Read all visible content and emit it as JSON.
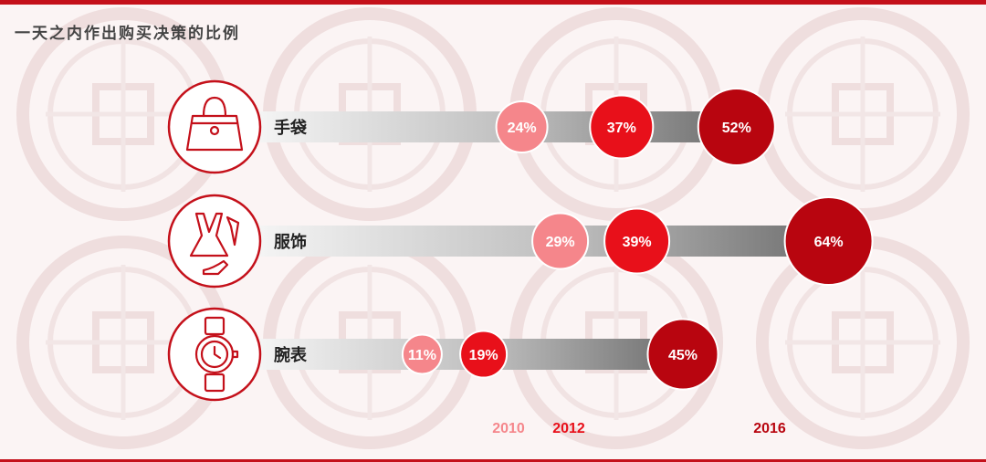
{
  "page": {
    "title": "一天之内作出购买决策的比例"
  },
  "colors": {
    "accent": "#c4101a",
    "y2010": "#f5868b",
    "y2012": "#e8101a",
    "y2016": "#b8050f"
  },
  "chart_data": {
    "type": "bubble",
    "title": "一天之内作出购买决策的比例",
    "years": [
      "2010",
      "2012",
      "2016"
    ],
    "categories": [
      {
        "name": "手袋",
        "icon": "handbag-icon",
        "values": [
          24,
          37,
          52
        ],
        "labels": [
          "24%",
          "37%",
          "52%"
        ]
      },
      {
        "name": "服饰",
        "icon": "clothing-icon",
        "values": [
          29,
          39,
          64
        ],
        "labels": [
          "29%",
          "39%",
          "64%"
        ]
      },
      {
        "name": "腕表",
        "icon": "watch-icon",
        "values": [
          11,
          19,
          45
        ],
        "labels": [
          "11%",
          "19%",
          "45%"
        ]
      }
    ],
    "unit": "%"
  }
}
